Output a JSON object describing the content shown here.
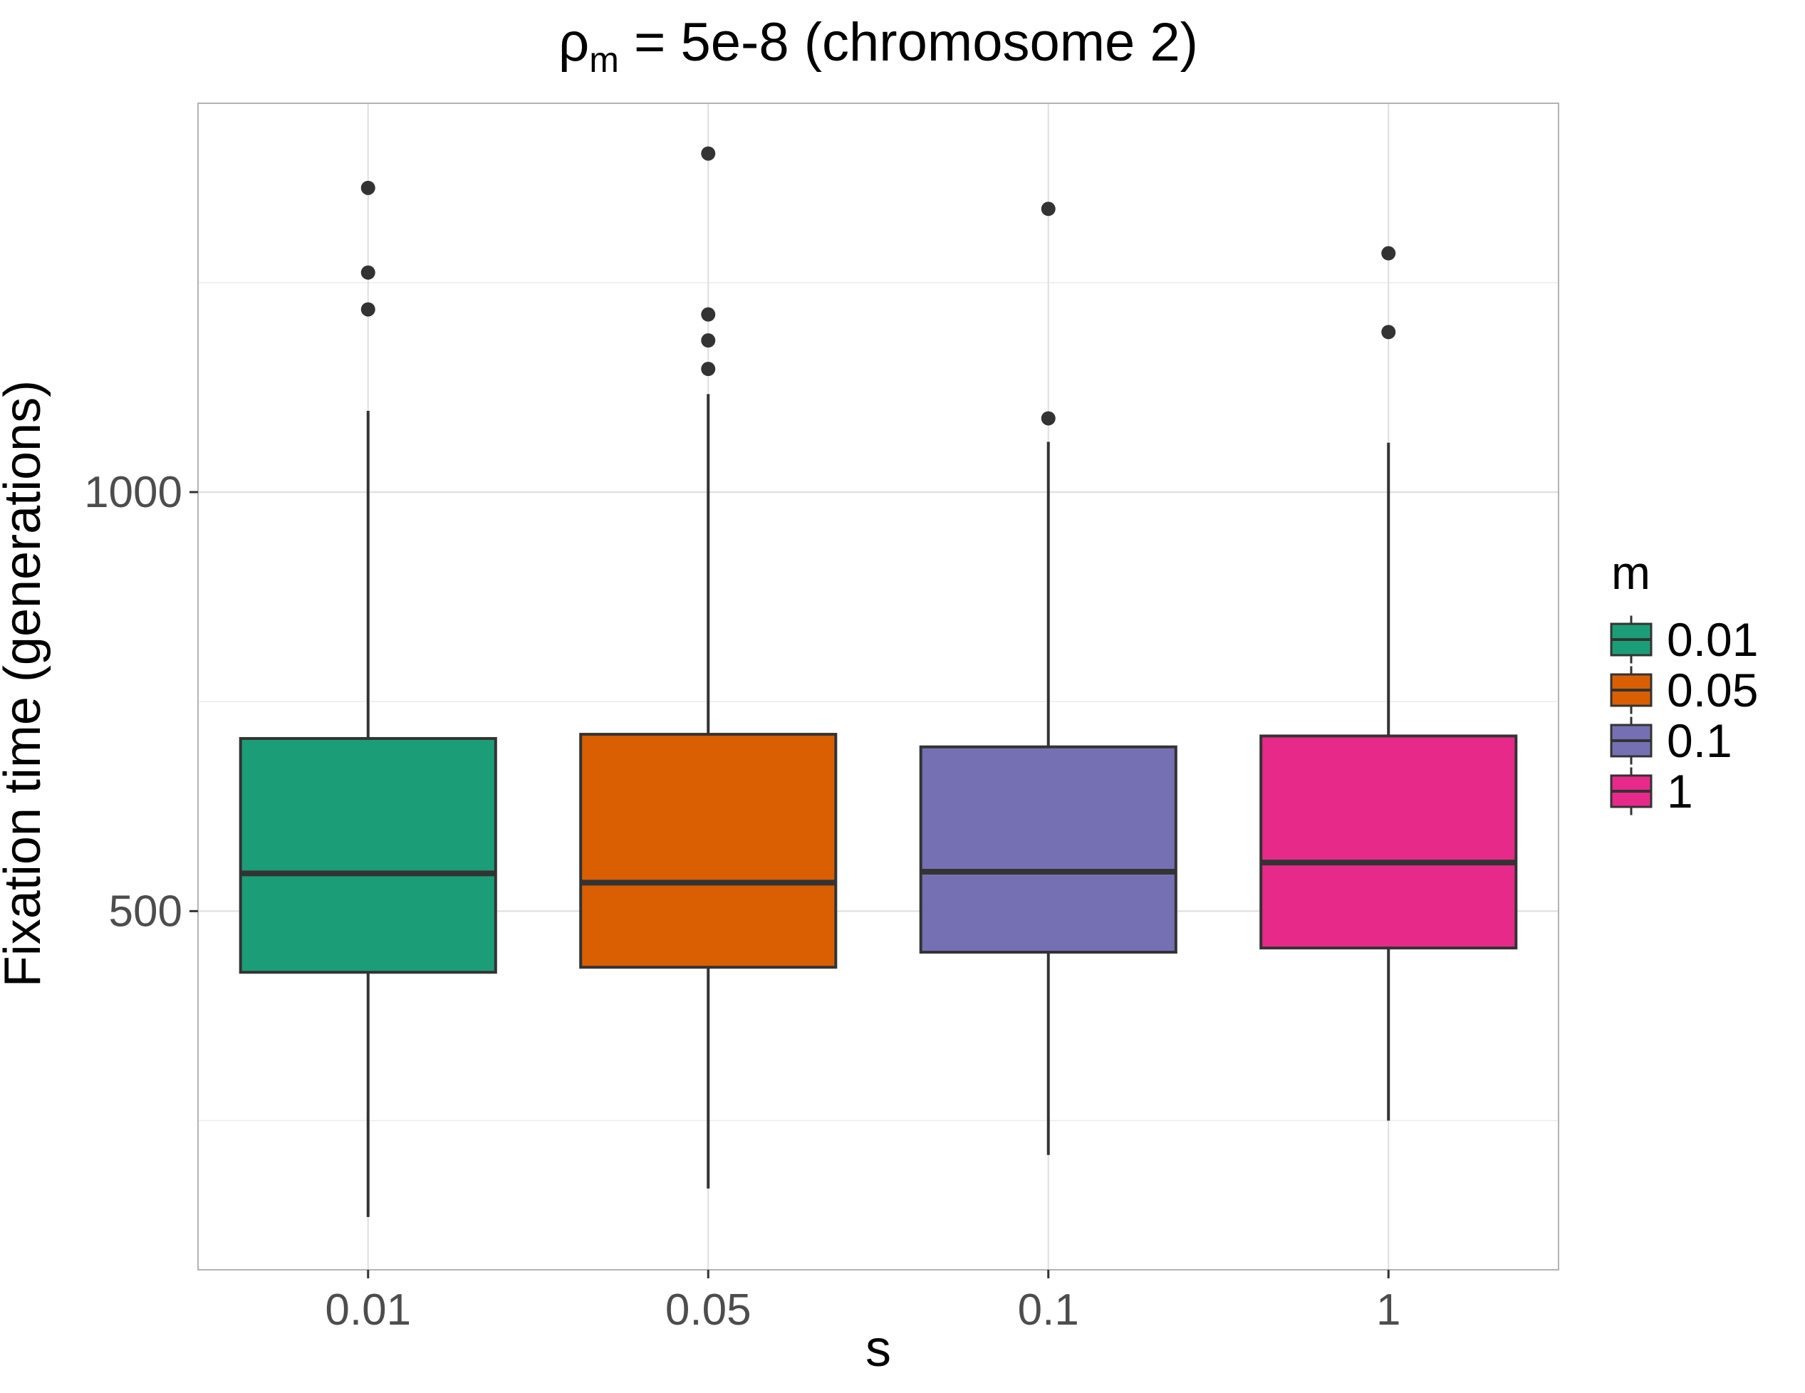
{
  "chart_data": {
    "type": "box",
    "title": {
      "main": "ρ",
      "subscript": "m",
      "rest": " = 5e-8 (chromosome 2)"
    },
    "xlabel": "s",
    "ylabel": "Fixation time (generations)",
    "categories": [
      "0.01",
      "0.05",
      "0.1",
      "1"
    ],
    "yticks": [
      500,
      1000
    ],
    "ylim": [
      72,
      1464
    ],
    "grid": true,
    "legend": {
      "title": "m",
      "placement": "right",
      "entries": [
        {
          "label": "0.01",
          "color": "#1b9e77"
        },
        {
          "label": "0.05",
          "color": "#d95f02"
        },
        {
          "label": "0.1",
          "color": "#7570b3"
        },
        {
          "label": "1",
          "color": "#e7298a"
        }
      ]
    },
    "series": [
      {
        "name": "0.01",
        "color": "#1b9e77",
        "whisker_low": 135,
        "q1": 427,
        "median": 545,
        "q3": 706,
        "whisker_high": 1097,
        "outliers": [
          1363,
          1262,
          1218
        ]
      },
      {
        "name": "0.05",
        "color": "#d95f02",
        "whisker_low": 169,
        "q1": 433,
        "median": 534,
        "q3": 711,
        "whisker_high": 1117,
        "outliers": [
          1404,
          1212,
          1181,
          1147
        ]
      },
      {
        "name": "0.1",
        "color": "#7570b3",
        "whisker_low": 209,
        "q1": 451,
        "median": 547,
        "q3": 696,
        "whisker_high": 1060,
        "outliers": [
          1338,
          1088
        ]
      },
      {
        "name": "1",
        "color": "#e7298a",
        "whisker_low": 250,
        "q1": 456,
        "median": 558,
        "q3": 709,
        "whisker_high": 1059,
        "outliers": [
          1285,
          1191
        ]
      }
    ]
  }
}
